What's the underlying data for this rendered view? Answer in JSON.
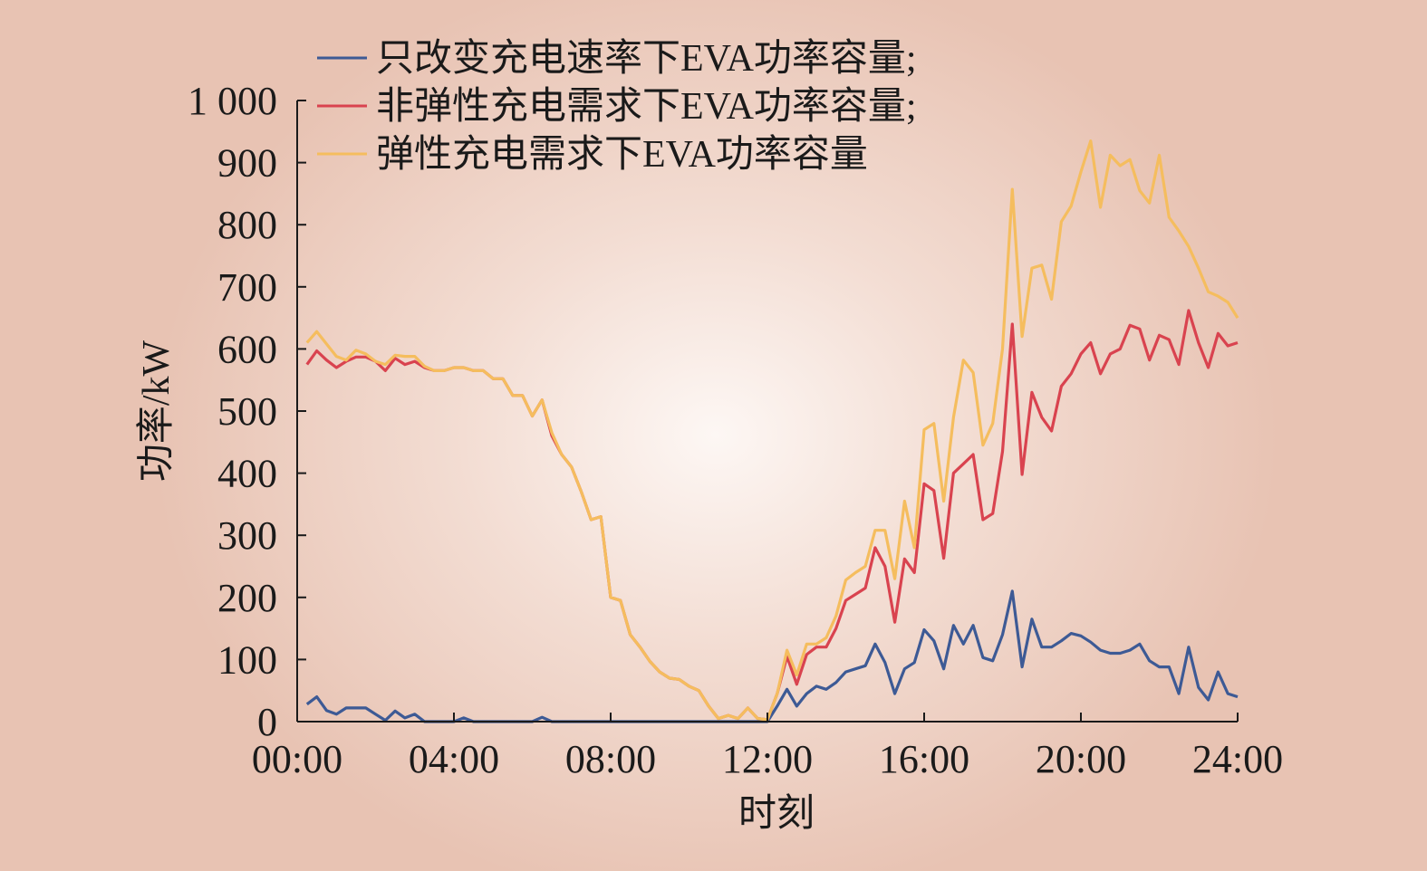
{
  "chart_data": {
    "type": "line",
    "xlabel": "时刻",
    "ylabel": "功率/kW",
    "xlim": [
      0,
      24
    ],
    "ylim": [
      0,
      1000
    ],
    "x_ticks": [
      {
        "value": 0,
        "label": "00:00"
      },
      {
        "value": 4,
        "label": "04:00"
      },
      {
        "value": 8,
        "label": "08:00"
      },
      {
        "value": 12,
        "label": "12:00"
      },
      {
        "value": 16,
        "label": "16:00"
      },
      {
        "value": 20,
        "label": "20:00"
      },
      {
        "value": 24,
        "label": "24:00"
      }
    ],
    "y_ticks": [
      {
        "value": 0,
        "label": "0"
      },
      {
        "value": 100,
        "label": "100"
      },
      {
        "value": 200,
        "label": "200"
      },
      {
        "value": 300,
        "label": "300"
      },
      {
        "value": 400,
        "label": "400"
      },
      {
        "value": 500,
        "label": "500"
      },
      {
        "value": 600,
        "label": "600"
      },
      {
        "value": 700,
        "label": "700"
      },
      {
        "value": 800,
        "label": "800"
      },
      {
        "value": 900,
        "label": "900"
      },
      {
        "value": 1000,
        "label": "1 000"
      }
    ],
    "grid": false,
    "legend_position": "top-left",
    "series": [
      {
        "name": "只改变充电速率下EVA功率容量;",
        "color": "#3d5a95",
        "points": [
          [
            0.25,
            28
          ],
          [
            0.5,
            40
          ],
          [
            0.75,
            18
          ],
          [
            1.0,
            12
          ],
          [
            1.25,
            22
          ],
          [
            1.5,
            22
          ],
          [
            1.75,
            22
          ],
          [
            2.0,
            12
          ],
          [
            2.25,
            2
          ],
          [
            2.5,
            17
          ],
          [
            2.75,
            6
          ],
          [
            3.0,
            12
          ],
          [
            3.25,
            0
          ],
          [
            3.5,
            0
          ],
          [
            3.75,
            0
          ],
          [
            4.0,
            0
          ],
          [
            4.25,
            6
          ],
          [
            4.5,
            0
          ],
          [
            5.0,
            0
          ],
          [
            5.5,
            0
          ],
          [
            6.0,
            0
          ],
          [
            6.25,
            7
          ],
          [
            6.5,
            0
          ],
          [
            7.0,
            0
          ],
          [
            8.0,
            0
          ],
          [
            9.0,
            0
          ],
          [
            10.0,
            0
          ],
          [
            11.0,
            0
          ],
          [
            12.0,
            0
          ],
          [
            12.25,
            25
          ],
          [
            12.5,
            52
          ],
          [
            12.75,
            25
          ],
          [
            13.0,
            45
          ],
          [
            13.25,
            57
          ],
          [
            13.5,
            52
          ],
          [
            13.75,
            63
          ],
          [
            14.0,
            80
          ],
          [
            14.25,
            85
          ],
          [
            14.5,
            90
          ],
          [
            14.75,
            125
          ],
          [
            15.0,
            95
          ],
          [
            15.25,
            45
          ],
          [
            15.5,
            85
          ],
          [
            15.75,
            95
          ],
          [
            16.0,
            148
          ],
          [
            16.25,
            130
          ],
          [
            16.5,
            85
          ],
          [
            16.75,
            155
          ],
          [
            17.0,
            125
          ],
          [
            17.25,
            155
          ],
          [
            17.5,
            103
          ],
          [
            17.75,
            98
          ],
          [
            18.0,
            140
          ],
          [
            18.25,
            210
          ],
          [
            18.5,
            88
          ],
          [
            18.75,
            165
          ],
          [
            19.0,
            120
          ],
          [
            19.25,
            120
          ],
          [
            19.5,
            130
          ],
          [
            19.75,
            142
          ],
          [
            20.0,
            138
          ],
          [
            20.25,
            128
          ],
          [
            20.5,
            115
          ],
          [
            20.75,
            110
          ],
          [
            21.0,
            110
          ],
          [
            21.25,
            115
          ],
          [
            21.5,
            125
          ],
          [
            21.75,
            98
          ],
          [
            22.0,
            88
          ],
          [
            22.25,
            88
          ],
          [
            22.5,
            45
          ],
          [
            22.75,
            120
          ],
          [
            23.0,
            55
          ],
          [
            23.25,
            35
          ],
          [
            23.5,
            80
          ],
          [
            23.75,
            45
          ],
          [
            24.0,
            40
          ]
        ]
      },
      {
        "name": "非弹性充电需求下EVA功率容量;",
        "color": "#d9434f",
        "points": [
          [
            0.25,
            575
          ],
          [
            0.5,
            597
          ],
          [
            0.75,
            582
          ],
          [
            1.0,
            570
          ],
          [
            1.25,
            580
          ],
          [
            1.5,
            587
          ],
          [
            1.75,
            587
          ],
          [
            2.0,
            580
          ],
          [
            2.25,
            565
          ],
          [
            2.5,
            585
          ],
          [
            2.75,
            575
          ],
          [
            3.0,
            580
          ],
          [
            3.25,
            570
          ],
          [
            3.5,
            565
          ],
          [
            3.75,
            565
          ],
          [
            4.0,
            570
          ],
          [
            4.25,
            570
          ],
          [
            4.5,
            565
          ],
          [
            4.75,
            565
          ],
          [
            5.0,
            552
          ],
          [
            5.25,
            552
          ],
          [
            5.5,
            525
          ],
          [
            5.75,
            525
          ],
          [
            6.0,
            492
          ],
          [
            6.25,
            518
          ],
          [
            6.5,
            460
          ],
          [
            6.75,
            430
          ],
          [
            7.0,
            410
          ],
          [
            7.25,
            370
          ],
          [
            7.5,
            325
          ],
          [
            7.75,
            330
          ],
          [
            8.0,
            200
          ],
          [
            8.25,
            195
          ],
          [
            8.5,
            140
          ],
          [
            8.75,
            120
          ],
          [
            9.0,
            97
          ],
          [
            9.25,
            80
          ],
          [
            9.5,
            70
          ],
          [
            9.75,
            68
          ],
          [
            10.0,
            57
          ],
          [
            10.25,
            50
          ],
          [
            10.5,
            25
          ],
          [
            10.75,
            5
          ],
          [
            11.0,
            10
          ],
          [
            11.25,
            5
          ],
          [
            11.5,
            22
          ],
          [
            11.75,
            5
          ],
          [
            12.0,
            3
          ],
          [
            12.25,
            45
          ],
          [
            12.5,
            105
          ],
          [
            12.75,
            60
          ],
          [
            13.0,
            108
          ],
          [
            13.25,
            120
          ],
          [
            13.5,
            120
          ],
          [
            13.75,
            150
          ],
          [
            14.0,
            195
          ],
          [
            14.25,
            205
          ],
          [
            14.5,
            215
          ],
          [
            14.75,
            280
          ],
          [
            15.0,
            250
          ],
          [
            15.25,
            160
          ],
          [
            15.5,
            262
          ],
          [
            15.75,
            240
          ],
          [
            16.0,
            383
          ],
          [
            16.25,
            372
          ],
          [
            16.5,
            263
          ],
          [
            16.75,
            400
          ],
          [
            17.0,
            415
          ],
          [
            17.25,
            430
          ],
          [
            17.5,
            325
          ],
          [
            17.75,
            335
          ],
          [
            18.0,
            435
          ],
          [
            18.25,
            640
          ],
          [
            18.5,
            398
          ],
          [
            18.75,
            530
          ],
          [
            19.0,
            490
          ],
          [
            19.25,
            468
          ],
          [
            19.5,
            540
          ],
          [
            19.75,
            560
          ],
          [
            20.0,
            592
          ],
          [
            20.25,
            610
          ],
          [
            20.5,
            560
          ],
          [
            20.75,
            592
          ],
          [
            21.0,
            600
          ],
          [
            21.25,
            638
          ],
          [
            21.5,
            632
          ],
          [
            21.75,
            582
          ],
          [
            22.0,
            622
          ],
          [
            22.25,
            615
          ],
          [
            22.5,
            575
          ],
          [
            22.75,
            662
          ],
          [
            23.0,
            610
          ],
          [
            23.25,
            570
          ],
          [
            23.5,
            625
          ],
          [
            23.75,
            605
          ],
          [
            24.0,
            610
          ]
        ]
      },
      {
        "name": "弹性充电需求下EVA功率容量",
        "color": "#f5bd5e",
        "points": [
          [
            0.25,
            610
          ],
          [
            0.5,
            628
          ],
          [
            0.75,
            608
          ],
          [
            1.0,
            588
          ],
          [
            1.25,
            582
          ],
          [
            1.5,
            598
          ],
          [
            1.75,
            592
          ],
          [
            2.0,
            580
          ],
          [
            2.25,
            575
          ],
          [
            2.5,
            590
          ],
          [
            2.75,
            588
          ],
          [
            3.0,
            588
          ],
          [
            3.25,
            572
          ],
          [
            3.5,
            565
          ],
          [
            3.75,
            565
          ],
          [
            4.0,
            570
          ],
          [
            4.25,
            570
          ],
          [
            4.5,
            565
          ],
          [
            4.75,
            565
          ],
          [
            5.0,
            552
          ],
          [
            5.25,
            552
          ],
          [
            5.5,
            525
          ],
          [
            5.75,
            525
          ],
          [
            6.0,
            492
          ],
          [
            6.25,
            518
          ],
          [
            6.5,
            465
          ],
          [
            6.75,
            430
          ],
          [
            7.0,
            410
          ],
          [
            7.25,
            370
          ],
          [
            7.5,
            325
          ],
          [
            7.75,
            330
          ],
          [
            8.0,
            200
          ],
          [
            8.25,
            195
          ],
          [
            8.5,
            140
          ],
          [
            8.75,
            120
          ],
          [
            9.0,
            97
          ],
          [
            9.25,
            80
          ],
          [
            9.5,
            70
          ],
          [
            9.75,
            68
          ],
          [
            10.0,
            57
          ],
          [
            10.25,
            50
          ],
          [
            10.5,
            25
          ],
          [
            10.75,
            5
          ],
          [
            11.0,
            10
          ],
          [
            11.25,
            5
          ],
          [
            11.5,
            22
          ],
          [
            11.75,
            5
          ],
          [
            12.0,
            3
          ],
          [
            12.25,
            45
          ],
          [
            12.5,
            115
          ],
          [
            12.75,
            75
          ],
          [
            13.0,
            125
          ],
          [
            13.25,
            125
          ],
          [
            13.5,
            135
          ],
          [
            13.75,
            170
          ],
          [
            14.0,
            228
          ],
          [
            14.25,
            240
          ],
          [
            14.5,
            250
          ],
          [
            14.75,
            308
          ],
          [
            15.0,
            308
          ],
          [
            15.25,
            230
          ],
          [
            15.5,
            355
          ],
          [
            15.75,
            280
          ],
          [
            16.0,
            470
          ],
          [
            16.25,
            480
          ],
          [
            16.5,
            355
          ],
          [
            16.75,
            490
          ],
          [
            17.0,
            582
          ],
          [
            17.25,
            562
          ],
          [
            17.5,
            445
          ],
          [
            17.75,
            480
          ],
          [
            18.0,
            600
          ],
          [
            18.25,
            857
          ],
          [
            18.5,
            620
          ],
          [
            18.75,
            730
          ],
          [
            19.0,
            735
          ],
          [
            19.25,
            680
          ],
          [
            19.5,
            805
          ],
          [
            19.75,
            830
          ],
          [
            20.0,
            885
          ],
          [
            20.25,
            935
          ],
          [
            20.5,
            828
          ],
          [
            20.75,
            912
          ],
          [
            21.0,
            895
          ],
          [
            21.25,
            905
          ],
          [
            21.5,
            855
          ],
          [
            21.75,
            835
          ],
          [
            22.0,
            912
          ],
          [
            22.25,
            812
          ],
          [
            22.5,
            790
          ],
          [
            22.75,
            765
          ],
          [
            23.0,
            730
          ],
          [
            23.25,
            692
          ],
          [
            23.5,
            685
          ],
          [
            23.75,
            675
          ],
          [
            24.0,
            650
          ]
        ]
      }
    ]
  }
}
